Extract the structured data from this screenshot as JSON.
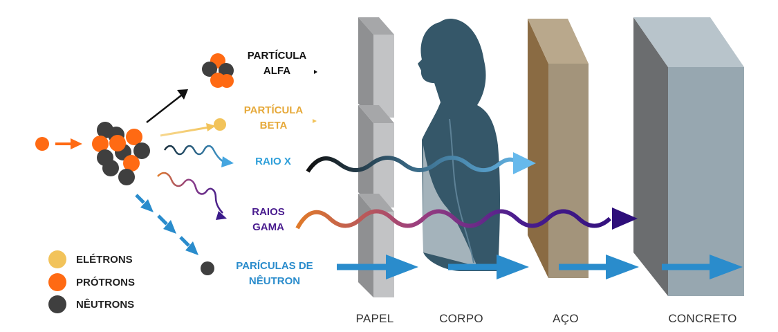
{
  "colors": {
    "proton": "#ff6a13",
    "neutron": "#3f3f3f",
    "electron": "#f2c35a",
    "alpha_label": "#111111",
    "beta_label": "#e6a93a",
    "xray_label": "#2e9fd9",
    "gamma_label": "#4a1d8f",
    "neutron_label": "#2a8ccc",
    "beam_arrow": "#2a8ccc",
    "paper": "#c2c3c5",
    "body": "#355769",
    "steel": "#9b8e77",
    "concrete": "#97a7b0"
  },
  "emissions": {
    "alpha": {
      "line1": "PARTÍCULA",
      "line2": "ALFA"
    },
    "beta": {
      "line1": "PARTÍCULA",
      "line2": "BETA"
    },
    "xray": {
      "line1": "RAIO X"
    },
    "gamma": {
      "line1": "RAIOS",
      "line2": "GAMA"
    },
    "neutron": {
      "line1": "PARÍCULAS DE",
      "line2": "NÊUTRON"
    }
  },
  "legend": [
    {
      "label": "ELÉTRONS",
      "color": "#f2c35a"
    },
    {
      "label": "PRÓTRONS",
      "color": "#ff6a13"
    },
    {
      "label": "NÊUTRONS",
      "color": "#3f3f3f"
    }
  ],
  "barriers": {
    "paper": "PAPEL",
    "body": "CORPO",
    "steel": "AÇO",
    "concrete": "CONCRETO"
  }
}
